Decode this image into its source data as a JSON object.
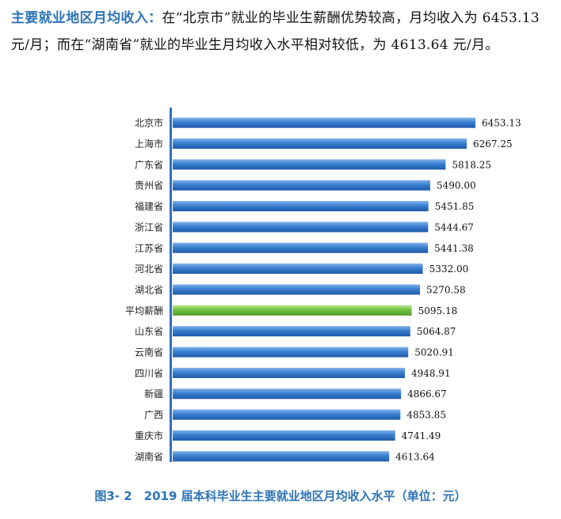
{
  "paragraph": {
    "lead": "主要就业地区月均收入：",
    "body": "在“北京市”就业的毕业生薪酬优势较高，月均收入为 6453.13 元/月；而在“湖南省”就业的毕业生月均收入水平相对较低，为 4613.64 元/月。"
  },
  "caption": "图3- 2　2019 届本科毕业生主要就业地区月均收入水平（单位：元）",
  "colors": {
    "bar_blue": "#2f6fbf",
    "bar_green": "#6dbf3f",
    "axis": "#2f6fbf",
    "heading": "#2e74b5"
  },
  "chart_data": {
    "type": "bar",
    "orientation": "horizontal",
    "categories": [
      "北京市",
      "上海市",
      "广东省",
      "贵州省",
      "福建省",
      "浙江省",
      "江苏省",
      "河北省",
      "湖北省",
      "平均薪酬",
      "山东省",
      "云南省",
      "四川省",
      "新疆",
      "广西",
      "重庆市",
      "湖南省"
    ],
    "values": [
      6453.13,
      6267.25,
      5818.25,
      5490.0,
      5451.85,
      5444.67,
      5441.38,
      5332.0,
      5270.58,
      5095.18,
      5064.87,
      5020.91,
      4948.91,
      4866.67,
      4853.85,
      4741.49,
      4613.64
    ],
    "value_labels": [
      "6453.13",
      "6267.25",
      "5818.25",
      "5490.00",
      "5451.85",
      "5444.67",
      "5441.38",
      "5332.00",
      "5270.58",
      "5095.18",
      "5064.87",
      "5020.91",
      "4948.91",
      "4866.67",
      "4853.85",
      "4741.49",
      "4613.64"
    ],
    "highlight": "平均薪酬",
    "xlim": [
      0,
      6453.13
    ],
    "grid": false,
    "legend": "none"
  }
}
